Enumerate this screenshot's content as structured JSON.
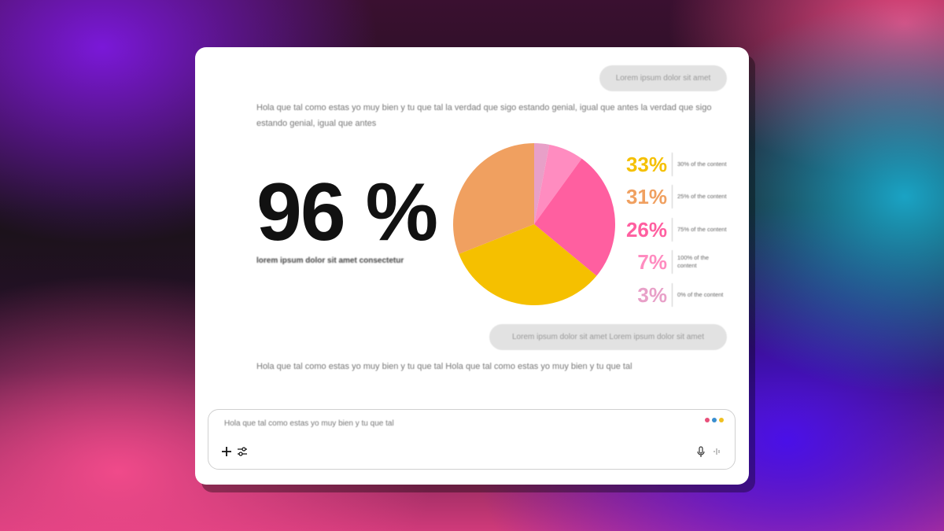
{
  "chat": {
    "user_message_1": "Lorem ipsum dolor sit amet",
    "assistant_text_1": "Hola que tal como estas yo muy bien y tu que tal la verdad que sigo estando genial, igual que antes la verdad que sigo estando genial, igual que antes",
    "user_message_2": "Lorem ipsum dolor sit amet Lorem ipsum dolor sit amet",
    "assistant_text_2": "Hola que tal como estas yo muy bien y tu que tal Hola que tal como estas yo muy bien y tu que tal"
  },
  "stat": {
    "value": "96 %",
    "caption": "lorem ipsum dolor sit amet consectetur"
  },
  "chart_data": {
    "type": "pie",
    "slices": [
      {
        "label": "33%",
        "value": 33,
        "description": "30% of the content",
        "color": "#f5c000"
      },
      {
        "label": "31%",
        "value": 31,
        "description": "25% of the content",
        "color": "#f0a060"
      },
      {
        "label": "26%",
        "value": 26,
        "description": "75% of the content",
        "color": "#ff5fa0"
      },
      {
        "label": "7%",
        "value": 7,
        "description": "100% of the content",
        "color": "#ff8cc0"
      },
      {
        "label": "3%",
        "value": 3,
        "description": "0% of the content",
        "color": "#e8a0c8"
      }
    ]
  },
  "composer": {
    "value": "Hola que tal como estas yo muy bien y tu que tal",
    "icons": [
      "plus-icon",
      "sliders-icon",
      "microphone-icon",
      "waveform-icon"
    ],
    "dot_colors": [
      "#e8507a",
      "#3a8fd0",
      "#f0c020"
    ]
  }
}
